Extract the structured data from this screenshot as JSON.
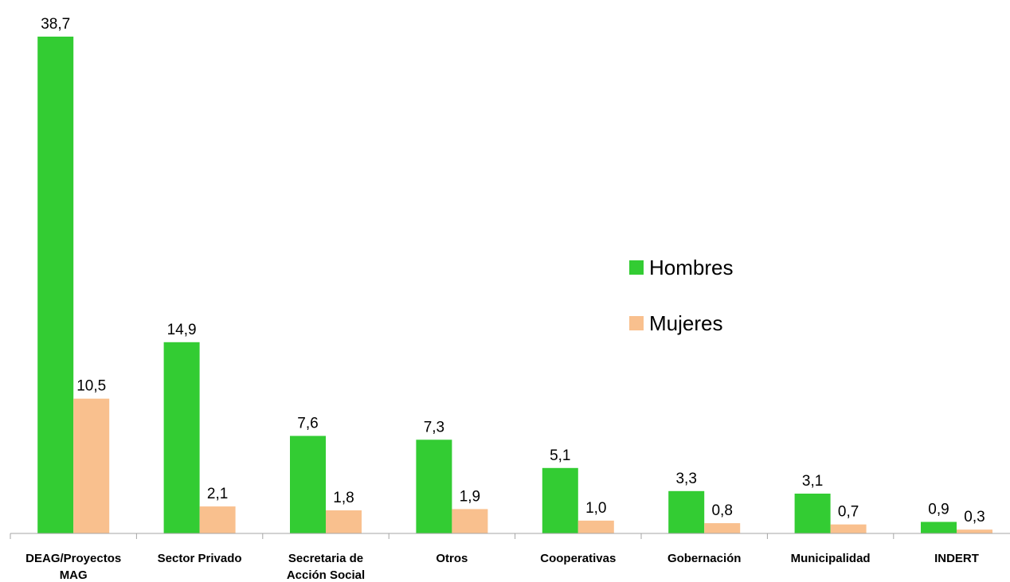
{
  "chart_data": {
    "type": "bar",
    "categories": [
      [
        "DEAG/Proyectos",
        "MAG"
      ],
      [
        "Sector Privado"
      ],
      [
        "Secretaria de",
        "Acción Social"
      ],
      [
        "Otros"
      ],
      [
        "Cooperativas"
      ],
      [
        "Gobernación"
      ],
      [
        "Municipalidad"
      ],
      [
        "INDERT"
      ]
    ],
    "series": [
      {
        "name": "Hombres",
        "color": "#33cc33",
        "values": [
          38.7,
          14.9,
          7.6,
          7.3,
          5.1,
          3.3,
          3.1,
          0.9
        ],
        "labels": [
          "38,7",
          "14,9",
          "7,6",
          "7,3",
          "5,1",
          "3,3",
          "3,1",
          "0,9"
        ]
      },
      {
        "name": "Mujeres",
        "color": "#f9c08e",
        "values": [
          10.5,
          2.1,
          1.8,
          1.9,
          1.0,
          0.8,
          0.7,
          0.3
        ],
        "labels": [
          "10,5",
          "2,1",
          "1,8",
          "1,9",
          "1,0",
          "0,8",
          "0,7",
          "0,3"
        ]
      }
    ],
    "ylim": [
      0,
      40
    ],
    "grid": false,
    "legend_position": "right"
  }
}
